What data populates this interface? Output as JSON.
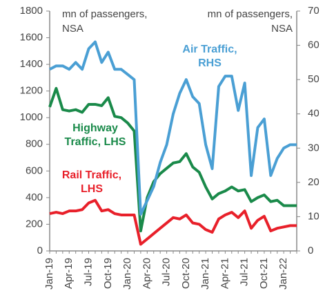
{
  "chart_data": {
    "type": "line",
    "y_axis_label": [
      "mn of passengers,",
      "NSA"
    ],
    "y2_axis_label": [
      "mn of passengers,",
      "NSA"
    ],
    "categories": [
      "Jan-19",
      null,
      null,
      "Apr-19",
      null,
      null,
      "Jul-19",
      null,
      null,
      "Oct-19",
      null,
      null,
      "Jan-20",
      null,
      null,
      "Apr-20",
      null,
      null,
      "Jul-20",
      null,
      null,
      "Oct-20",
      null,
      null,
      "Jan-21",
      null,
      null,
      "Apr-21",
      null,
      null,
      "Jul-21",
      null,
      null,
      "Oct-21",
      null,
      null,
      "Jan-22",
      null,
      null
    ],
    "ylim": [
      0,
      1800
    ],
    "yticks": [
      0,
      200,
      400,
      600,
      800,
      1000,
      1200,
      1400,
      1600,
      1800
    ],
    "y2lim": [
      0,
      70
    ],
    "y2ticks": [
      0,
      10,
      20,
      30,
      40,
      50,
      60,
      70
    ],
    "series": [
      {
        "name": "Highway Traffic, LHS",
        "color": "#1a8a4a",
        "values": [
          1080,
          1220,
          1060,
          1050,
          1060,
          1040,
          1100,
          1100,
          1090,
          1150,
          1010,
          1000,
          960,
          900,
          150,
          400,
          520,
          580,
          620,
          660,
          670,
          730,
          630,
          590,
          480,
          390,
          430,
          450,
          480,
          450,
          460,
          370,
          400,
          420,
          370,
          380,
          340,
          340,
          340
        ]
      },
      {
        "name": "Rail Traffic, LHS",
        "color": "#e8202a",
        "values": [
          280,
          290,
          280,
          300,
          300,
          310,
          360,
          380,
          300,
          310,
          280,
          270,
          270,
          270,
          50,
          90,
          130,
          170,
          210,
          250,
          240,
          270,
          210,
          200,
          160,
          140,
          240,
          270,
          290,
          250,
          300,
          170,
          230,
          260,
          150,
          170,
          180,
          190,
          190
        ]
      },
      {
        "name": "Air Traffic, RHS",
        "color": "#4a9fd4",
        "axis": "y2",
        "values": [
          53,
          54,
          54,
          53,
          55,
          53,
          59,
          61,
          55,
          58,
          53,
          53,
          51.5,
          50,
          10.7,
          14.7,
          18.8,
          25.8,
          31,
          40,
          46,
          50,
          45,
          43,
          31,
          24,
          48,
          51,
          51,
          41,
          49,
          22,
          36,
          38.5,
          22,
          27,
          30,
          31,
          31
        ]
      }
    ],
    "annotations": [
      {
        "lines": [
          "Highway",
          "Traffic, LHS"
        ],
        "color": "#1a8a4a"
      },
      {
        "lines": [
          "Rail Traffic,",
          "LHS"
        ],
        "color": "#e8202a"
      },
      {
        "lines": [
          "Air Traffic,",
          "RHS"
        ],
        "color": "#4a9fd4"
      }
    ]
  }
}
